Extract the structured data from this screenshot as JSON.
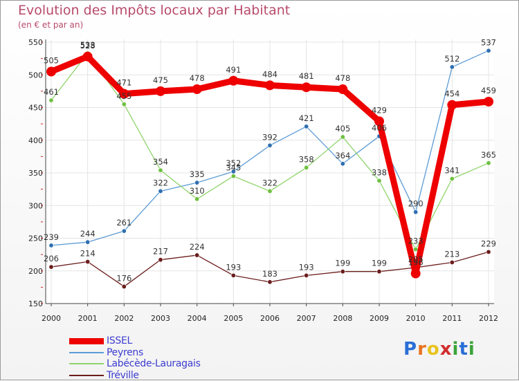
{
  "title": "Evolution des Impôts locaux par Habitant",
  "subtitle": "(en € et par an)",
  "logo": {
    "letters": [
      "P",
      "r",
      "o",
      "x",
      "i",
      "t",
      "i"
    ],
    "colors": [
      "#2a6fd6",
      "#e8731f",
      "#e8c31f",
      "#d12e2e",
      "#3aa33a",
      "#2a6fd6",
      "#3aa33a"
    ]
  },
  "chart_data": {
    "type": "line",
    "x": [
      "2000",
      "2001",
      "2002",
      "2003",
      "2004",
      "2005",
      "2006",
      "2007",
      "2008",
      "2009",
      "2010",
      "2011",
      "2012"
    ],
    "ylim": [
      150,
      550
    ],
    "yticks": [
      "550",
      "500",
      "450",
      "400",
      "350",
      "300",
      "250",
      "200",
      "150"
    ],
    "grid": true,
    "series": [
      {
        "name": "Peyrens",
        "color": "#5b9bd5",
        "marker": "#2f6fb0",
        "values": [
          239,
          244,
          261,
          322,
          335,
          352,
          392,
          421,
          364,
          406,
          290,
          512,
          537
        ],
        "labels": [
          "239",
          "244",
          "261",
          "322",
          "335",
          "352",
          "392",
          "421",
          "364",
          "406",
          "290",
          "512",
          "537"
        ]
      },
      {
        "name": "Labécède-Lauragais",
        "color": "#8fd46a",
        "marker": "#6fc040",
        "values": [
          461,
          533,
          455,
          354,
          310,
          345,
          322,
          358,
          405,
          338,
          233,
          341,
          365
        ],
        "labels": [
          "461",
          "533",
          "455",
          "354",
          "310",
          "345",
          "322",
          "358",
          "405",
          "338",
          "233",
          "341",
          "365"
        ]
      },
      {
        "name": "Tréville",
        "color": "#6b1c1c",
        "marker": "#6b1c1c",
        "values": [
          206,
          214,
          176,
          217,
          224,
          193,
          183,
          193,
          199,
          199,
          205,
          213,
          229
        ],
        "labels": [
          "206",
          "214",
          "176",
          "217",
          "224",
          "193",
          "183",
          "193",
          "199",
          "199",
          "205",
          "213",
          "229"
        ]
      },
      {
        "name": "ISSEL",
        "color": "#ee0000",
        "marker": "#ee0000",
        "bold": true,
        "values": [
          505,
          528,
          471,
          475,
          478,
          491,
          484,
          481,
          478,
          429,
          196,
          454,
          459
        ],
        "labels": [
          "505",
          "528",
          "471",
          "475",
          "478",
          "491",
          "484",
          "481",
          "478",
          "429",
          "196",
          "454",
          "459"
        ]
      }
    ],
    "legend": [
      "ISSEL",
      "Peyrens",
      "Labécède-Lauragais",
      "Tréville"
    ],
    "legend_position": "bottom-left"
  }
}
